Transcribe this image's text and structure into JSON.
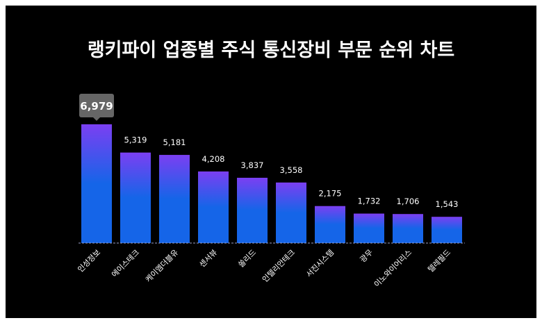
{
  "chart_data": {
    "type": "bar",
    "title": "랭키파이 업종별 주식 통신장비 부문 순위 차트",
    "categories": [
      "인성정보",
      "에이스테크",
      "케이엠더블유",
      "센서뷰",
      "쏠리드",
      "인텔리안테크",
      "서진시스템",
      "광무",
      "이노와이어리스",
      "텔레필드"
    ],
    "values": [
      6979,
      5319,
      5181,
      4208,
      3837,
      3558,
      2175,
      1732,
      1706,
      1543
    ],
    "value_labels": [
      "6,979",
      "5,319",
      "5,181",
      "4,208",
      "3,837",
      "3,558",
      "2,175",
      "1,732",
      "1,706",
      "1,543"
    ],
    "xlabel": "",
    "ylabel": "",
    "ylim": [
      0,
      6979
    ],
    "highlighted_index": 0,
    "colors": {
      "bar_top": "#7b3ff2",
      "bar_bottom": "#1565e8",
      "tooltip": "#666666",
      "background": "#000000"
    }
  }
}
